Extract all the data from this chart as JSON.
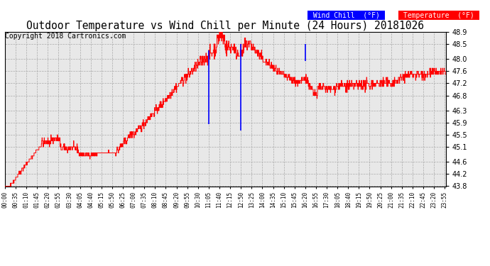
{
  "title": "Outdoor Temperature vs Wind Chill per Minute (24 Hours) 20181026",
  "copyright_text": "Copyright 2018 Cartronics.com",
  "legend_entries": [
    "Wind Chill  (°F)",
    "Temperature  (°F)"
  ],
  "background_color": "#ffffff",
  "plot_bg_color": "#e8e8e8",
  "grid_color": "#aaaaaa",
  "title_fontsize": 10.5,
  "copyright_fontsize": 7,
  "ylim_min": 43.8,
  "ylim_max": 48.9,
  "yticks": [
    43.8,
    44.2,
    44.6,
    45.1,
    45.5,
    45.9,
    46.3,
    46.8,
    47.2,
    47.6,
    48.0,
    48.5,
    48.9
  ],
  "temp_color": "#ff0000",
  "wind_color": "#0000ff",
  "minutes_in_day": 1440,
  "tick_interval": 35,
  "wind_spike1_minute": 665,
  "wind_spike1_low": 45.85,
  "wind_spike2_minute": 770,
  "wind_spike2_low": 45.65,
  "wind_spike3_minute": 980,
  "wind_spike3_low": 47.95,
  "wind_spike3_high": 48.5
}
